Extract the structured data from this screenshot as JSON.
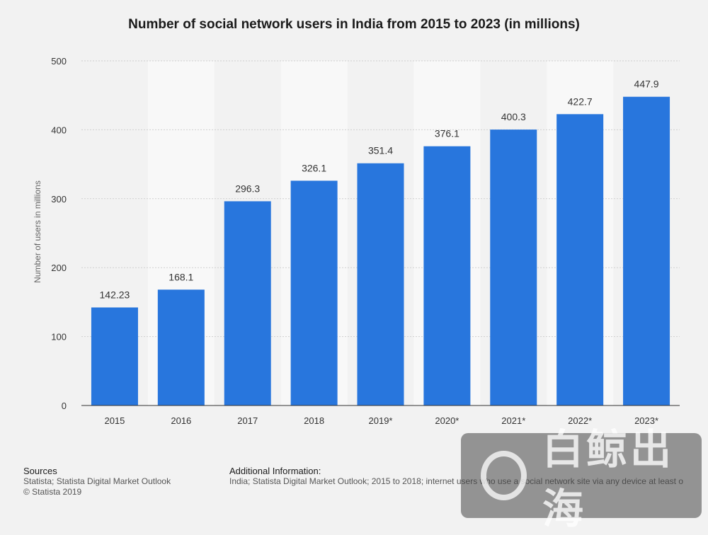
{
  "title": "Number of social network users in India from 2015 to 2023 (in millions)",
  "chart_data": {
    "type": "bar",
    "title": "Number of social network users in India from 2015 to 2023 (in millions)",
    "xlabel": "",
    "ylabel": "Number of users in millions",
    "ylim": [
      0,
      500
    ],
    "yticks": [
      0,
      100,
      200,
      300,
      400,
      500
    ],
    "categories": [
      "2015",
      "2016",
      "2017",
      "2018",
      "2019*",
      "2020*",
      "2021*",
      "2022*",
      "2023*"
    ],
    "values": [
      142.23,
      168.1,
      296.3,
      326.1,
      351.4,
      376.1,
      400.3,
      422.7,
      447.9
    ],
    "value_labels": [
      "142.23",
      "168.1",
      "296.3",
      "326.1",
      "351.4",
      "376.1",
      "400.3",
      "422.7",
      "447.9"
    ],
    "grid": true,
    "bar_color": "#2876dd"
  },
  "footer": {
    "sources_heading": "Sources",
    "sources_line1": "Statista; Statista Digital Market Outlook",
    "sources_line2": "© Statista 2019",
    "additional_heading": "Additional Information:",
    "additional_text": "India; Statista Digital Market Outlook; 2015 to 2018; internet users who use a social network site via any device at least o"
  },
  "watermark": {
    "text": "白鲸出海",
    "icon": "whale-logo-icon"
  }
}
